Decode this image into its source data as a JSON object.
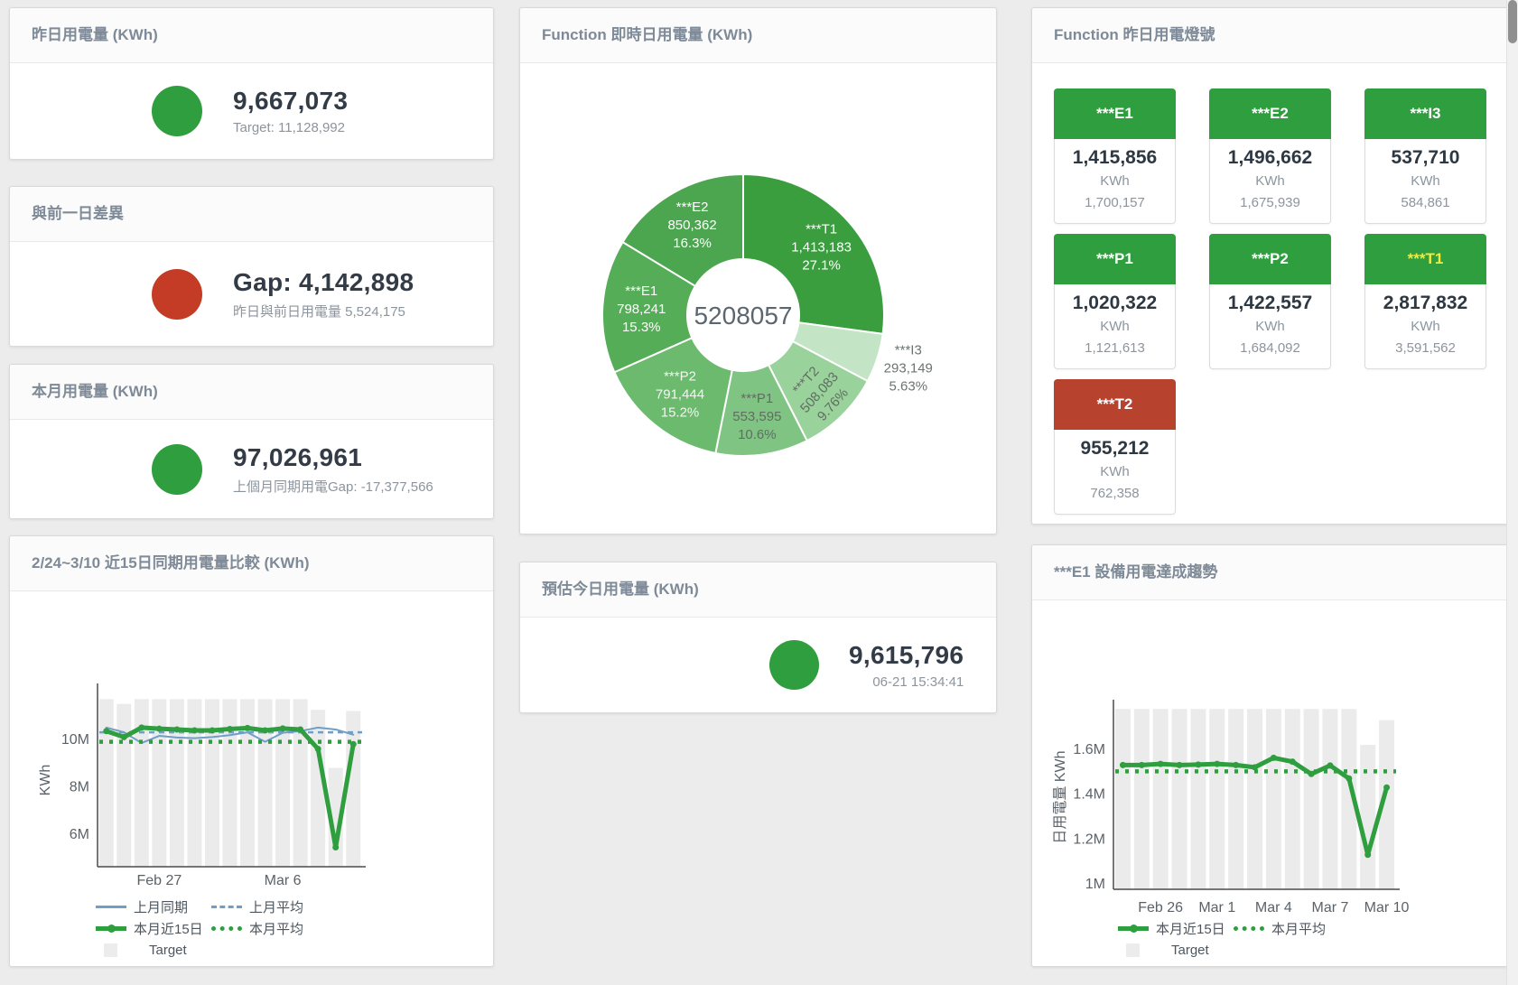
{
  "panels": {
    "yesterday": {
      "title": "昨日用電量 (KWh)",
      "value": "9,667,073",
      "subtitle": "Target: 11,128,992",
      "icon": "circle",
      "color": "#2f9e3e"
    },
    "diff_prev_day": {
      "title": "與前一日差異",
      "value": "Gap: 4,142,898",
      "subtitle": "昨日與前日用電量 5,524,175",
      "icon": "arrow-up",
      "color": "#c43b26"
    },
    "this_month": {
      "title": "本月用電量 (KWh)",
      "value": "97,026,961",
      "subtitle": "上個月同期用電Gap: -17,377,566",
      "icon": "arrow-down",
      "color": "#2f9e3e"
    },
    "estimate_today": {
      "title": "預估今日用電量 (KWh)",
      "value": "9,615,796",
      "subtitle": "06-21 15:34:41",
      "icon": "circle",
      "color": "#2f9e3e"
    },
    "realtime_donut": {
      "title": "Function 即時日用電量 (KWh)"
    },
    "lights": {
      "title": "Function 昨日用電燈號"
    },
    "compare15": {
      "title": "2/24~3/10 近15日同期用電量比較 (KWh)"
    },
    "e1_trend": {
      "title": "***E1 設備用電達成趨勢"
    }
  },
  "lights_tiles": [
    {
      "name": "***E1",
      "value": "1,415,856",
      "unit": "KWh",
      "target": "1,700,157",
      "header_bg": "#2f9e3e",
      "header_fg": "#ffffff"
    },
    {
      "name": "***E2",
      "value": "1,496,662",
      "unit": "KWh",
      "target": "1,675,939",
      "header_bg": "#2f9e3e",
      "header_fg": "#ffffff"
    },
    {
      "name": "***I3",
      "value": "537,710",
      "unit": "KWh",
      "target": "584,861",
      "header_bg": "#2f9e3e",
      "header_fg": "#ffffff"
    },
    {
      "name": "***P1",
      "value": "1,020,322",
      "unit": "KWh",
      "target": "1,121,613",
      "header_bg": "#2f9e3e",
      "header_fg": "#ffffff"
    },
    {
      "name": "***P2",
      "value": "1,422,557",
      "unit": "KWh",
      "target": "1,684,092",
      "header_bg": "#2f9e3e",
      "header_fg": "#ffffff"
    },
    {
      "name": "***T1",
      "value": "2,817,832",
      "unit": "KWh",
      "target": "3,591,562",
      "header_bg": "#2f9e3e",
      "header_fg": "#f6e93d"
    },
    {
      "name": "***T2",
      "value": "955,212",
      "unit": "KWh",
      "target": "762,358",
      "header_bg": "#b7432f",
      "header_fg": "#ffffff"
    }
  ],
  "chart_data": [
    {
      "id": "realtime_donut",
      "type": "pie",
      "title": "Function 即時日用電量 (KWh)",
      "center_total": "5208057",
      "slices": [
        {
          "name": "***T1",
          "value": 1413183,
          "value_str": "1,413,183",
          "pct": "27.1%",
          "color": "#3a9e3e",
          "text_color": "#ffffff",
          "label_r": 115
        },
        {
          "name": "***I3",
          "value": 293149,
          "value_str": "293,149",
          "pct": "5.63%",
          "color": "#c4e5c5",
          "text_color": "#6b7472",
          "label_r": 192,
          "outside": true
        },
        {
          "name": "***T2",
          "value": 508083,
          "value_str": "508,083",
          "pct": "9.76%",
          "color": "#9ad29b",
          "text_color": "#5f6e62",
          "label_r": 120,
          "rotate": -48
        },
        {
          "name": "***P1",
          "value": 553595,
          "value_str": "553,595",
          "pct": "10.6%",
          "color": "#80c483",
          "text_color": "#5f6e62",
          "label_r": 113
        },
        {
          "name": "***P2",
          "value": 791444,
          "value_str": "791,444",
          "pct": "15.2%",
          "color": "#6cba6e",
          "text_color": "#f2f7f2",
          "label_r": 112
        },
        {
          "name": "***E1",
          "value": 798241,
          "value_str": "798,241",
          "pct": "15.3%",
          "color": "#55ad58",
          "text_color": "#ffffff",
          "label_r": 113
        },
        {
          "name": "***E2",
          "value": 850362,
          "value_str": "850,362",
          "pct": "16.3%",
          "color": "#4ba64f",
          "text_color": "#ffffff",
          "label_r": 115
        }
      ]
    },
    {
      "id": "compare15",
      "type": "line",
      "title": "2/24~3/10 近15日同期用電量比較 (KWh)",
      "ylabel": "KWh",
      "ymin": 4630000,
      "ymax": 11980000,
      "yticks": [
        {
          "value": 6000000,
          "label": "6M"
        },
        {
          "value": 8000000,
          "label": "8M"
        },
        {
          "value": 10000000,
          "label": "10M"
        }
      ],
      "categories": [
        "2/24",
        "2/25",
        "2/26",
        "2/27",
        "2/28",
        "3/1",
        "3/2",
        "3/3",
        "3/4",
        "3/5",
        "3/6",
        "3/7",
        "3/8",
        "3/9",
        "3/10"
      ],
      "xticks": [
        {
          "index": 3,
          "label": "Feb 27"
        },
        {
          "index": 10,
          "label": "Mar 6"
        }
      ],
      "target": {
        "name": "Target",
        "color": "#ebebeb",
        "values": [
          11700000,
          11500000,
          11700000,
          11700000,
          11700000,
          11700000,
          11700000,
          11700000,
          11700000,
          11700000,
          11700000,
          11700000,
          11250000,
          8800000,
          11200000
        ]
      },
      "series": [
        {
          "name": "上月同期",
          "style": "line",
          "color": "#6f9fc6",
          "values": [
            10500000,
            10300000,
            9850000,
            10150000,
            10080000,
            10050000,
            10100000,
            10180000,
            10300000,
            9900000,
            10280000,
            10350000,
            10500000,
            10420000,
            10200000
          ]
        },
        {
          "name": "上月平均",
          "style": "dash",
          "color": "#6f9fc6",
          "value": 10300000
        },
        {
          "name": "本月近15日",
          "style": "thick",
          "color": "#2f9e3e",
          "values": [
            10350000,
            10100000,
            10500000,
            10450000,
            10420000,
            10380000,
            10380000,
            10440000,
            10480000,
            10380000,
            10460000,
            10420000,
            9600000,
            5450000,
            9800000
          ]
        },
        {
          "name": "本月平均",
          "style": "dot",
          "color": "#2f9e3e",
          "value": 9900000
        }
      ],
      "legend_rows": [
        [
          "上月同期",
          "上月平均"
        ],
        [
          "本月近15日",
          "本月平均"
        ],
        [
          "Target"
        ]
      ]
    },
    {
      "id": "e1_trend",
      "type": "line",
      "title": "***E1 設備用電達成趨勢",
      "ylabel": "日用電量 KWh",
      "ymin": 976000,
      "ymax": 1781000,
      "yticks": [
        {
          "value": 1000000,
          "label": "1M"
        },
        {
          "value": 1200000,
          "label": "1.2M"
        },
        {
          "value": 1400000,
          "label": "1.4M"
        },
        {
          "value": 1600000,
          "label": "1.6M"
        }
      ],
      "categories": [
        "2/24",
        "2/25",
        "2/26",
        "2/27",
        "2/28",
        "3/1",
        "3/2",
        "3/3",
        "3/4",
        "3/5",
        "3/6",
        "3/7",
        "3/8",
        "3/9",
        "3/10"
      ],
      "xticks": [
        {
          "index": 2,
          "label": "Feb 26"
        },
        {
          "index": 5,
          "label": "Mar 1"
        },
        {
          "index": 8,
          "label": "Mar 4"
        },
        {
          "index": 11,
          "label": "Mar 7"
        },
        {
          "index": 14,
          "label": "Mar 10"
        }
      ],
      "target": {
        "name": "Target",
        "color": "#ebebeb",
        "values": [
          1780000,
          1780000,
          1780000,
          1780000,
          1780000,
          1780000,
          1780000,
          1780000,
          1780000,
          1780000,
          1780000,
          1780000,
          1780000,
          1620000,
          1730000
        ]
      },
      "series": [
        {
          "name": "本月近15日",
          "style": "thick",
          "color": "#2f9e3e",
          "values": [
            1530000,
            1530000,
            1535000,
            1530000,
            1532000,
            1535000,
            1530000,
            1520000,
            1562000,
            1545000,
            1490000,
            1528000,
            1470000,
            1130000,
            1430000
          ]
        },
        {
          "name": "本月平均",
          "style": "dot",
          "color": "#2f9e3e",
          "value": 1502000
        }
      ],
      "legend_rows": [
        [
          "本月近15日",
          "本月平均"
        ],
        [
          "Target"
        ]
      ]
    }
  ]
}
